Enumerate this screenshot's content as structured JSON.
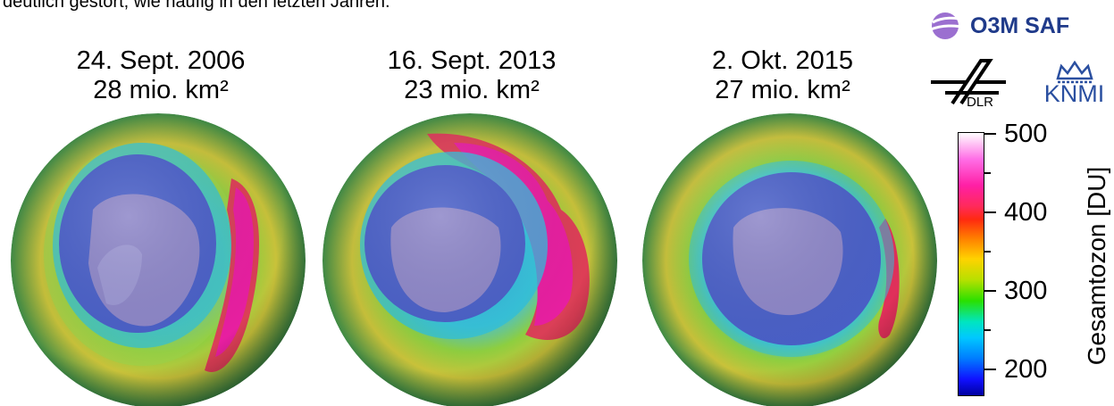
{
  "caption_top": "deutlich gestört, wie häufig in den letzten Jahren.",
  "panels": [
    {
      "date": "24. Sept. 2006",
      "area": "28 mio. km²"
    },
    {
      "date": "16. Sept. 2013",
      "area": "23 mio. km²"
    },
    {
      "date": "2. Okt. 2015",
      "area": "27 mio. km²"
    }
  ],
  "logos": {
    "o3m": "O3M SAF",
    "dlr": "DLR",
    "knmi": "KNMI"
  },
  "colorbar": {
    "title": "Gesamtozon [DU]",
    "ticks": [
      "500",
      "400",
      "300",
      "200"
    ],
    "range": [
      150,
      500
    ],
    "colors": [
      "#ffffff",
      "#ff1fa5",
      "#ff2a10",
      "#ffd200",
      "#2ae000",
      "#00c8ff",
      "#1010ff",
      "#0000a0"
    ]
  }
}
